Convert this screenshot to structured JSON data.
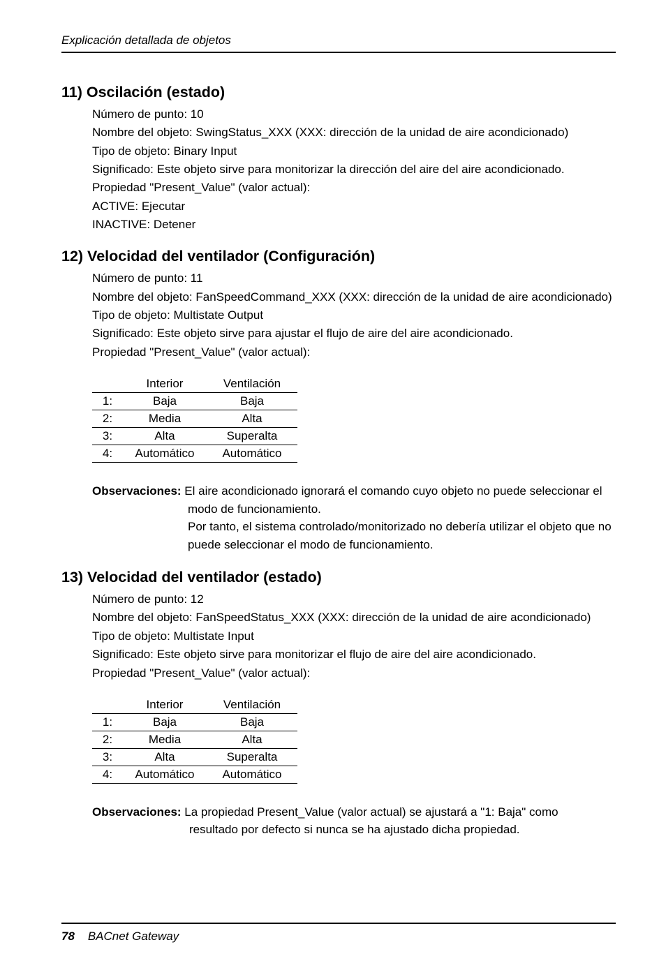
{
  "header": {
    "text": "Explicación detallada de objetos"
  },
  "sections": [
    {
      "title": "11) Oscilación (estado)",
      "lines": [
        "Número de punto: 10",
        "Nombre del objeto: SwingStatus_XXX (XXX: dirección de la unidad de aire acondicionado)",
        "Tipo de objeto: Binary Input",
        "Significado: Este objeto sirve para monitorizar la dirección del aire del aire acondicionado.",
        "Propiedad \"Present_Value\" (valor actual):",
        "ACTIVE: Ejecutar",
        "INACTIVE: Detener"
      ]
    },
    {
      "title": "12) Velocidad del ventilador (Configuración)",
      "lines": [
        "Número de punto: 11",
        "Nombre del objeto: FanSpeedCommand_XXX (XXX: dirección de la unidad de aire acondicionado)",
        "Tipo de objeto: Multistate Output",
        "Significado: Este objeto sirve para ajustar el flujo de aire del aire acondicionado.",
        "Propiedad \"Present_Value\" (valor actual):"
      ],
      "table": {
        "columns": [
          "",
          "Interior",
          "Ventilación"
        ],
        "rows": [
          [
            "1:",
            "Baja",
            "Baja"
          ],
          [
            "2:",
            "Media",
            "Alta"
          ],
          [
            "3:",
            "Alta",
            "Superalta"
          ],
          [
            "4:",
            "Automático",
            "Automático"
          ]
        ]
      },
      "obs": {
        "label": "Observaciones:",
        "text1a": "El aire acondicionado ignorará el comando cuyo objeto no puede seleccionar el",
        "text1b": "modo de funcionamiento.",
        "text2a": "Por tanto, el sistema controlado/monitorizado no debería utilizar el objeto que no",
        "text2b": "puede seleccionar el modo de funcionamiento."
      }
    },
    {
      "title": "13) Velocidad del ventilador (estado)",
      "lines": [
        "Número de punto: 12",
        "Nombre del objeto: FanSpeedStatus_XXX (XXX: dirección de la unidad de aire acondicionado)",
        "Tipo de objeto: Multistate Input",
        "Significado: Este objeto sirve para monitorizar el flujo de aire del aire acondicionado.",
        "Propiedad \"Present_Value\" (valor actual):"
      ],
      "table": {
        "columns": [
          "",
          "Interior",
          "Ventilación"
        ],
        "rows": [
          [
            "1:",
            "Baja",
            "Baja"
          ],
          [
            "2:",
            "Media",
            "Alta"
          ],
          [
            "3:",
            "Alta",
            "Superalta"
          ],
          [
            "4:",
            "Automático",
            "Automático"
          ]
        ]
      },
      "obs2": {
        "label": "Observaciones:",
        "text1a": "La propiedad Present_Value (valor actual) se ajustará a \"1: Baja\" como",
        "text1b": "resultado por defecto si nunca se ha ajustado dicha propiedad."
      }
    }
  ],
  "footer": {
    "page": "78",
    "title": "BACnet Gateway"
  }
}
